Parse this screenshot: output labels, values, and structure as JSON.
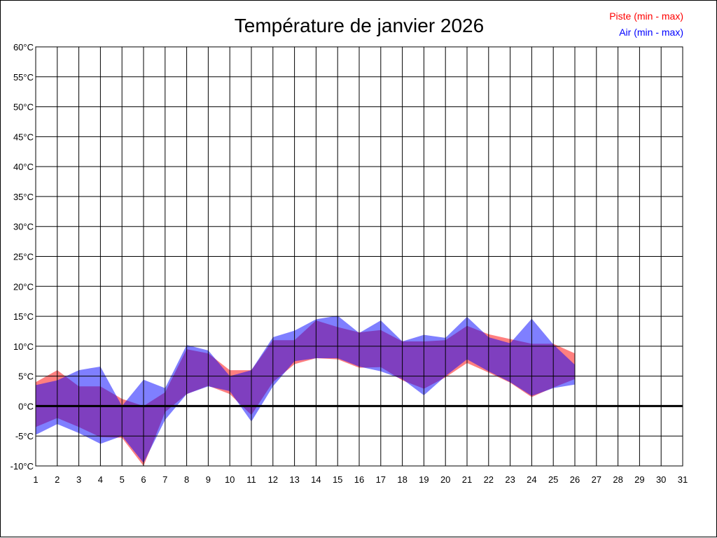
{
  "chart_data": {
    "type": "area",
    "title": "Température de janvier 2026",
    "xlabel": "",
    "ylabel": "",
    "x": [
      1,
      2,
      3,
      4,
      5,
      6,
      7,
      8,
      9,
      10,
      11,
      12,
      13,
      14,
      15,
      16,
      17,
      18,
      19,
      20,
      21,
      22,
      23,
      24,
      25,
      26,
      27,
      28,
      29,
      30,
      31
    ],
    "xlim": [
      1,
      31
    ],
    "ylim": [
      -10,
      60
    ],
    "y_ticks": [
      -10,
      -5,
      0,
      5,
      10,
      15,
      20,
      25,
      30,
      35,
      40,
      45,
      50,
      55,
      60
    ],
    "y_tick_labels": [
      "-10°C",
      "-5°C",
      "0°C",
      "5°C",
      "10°C",
      "15°C",
      "20°C",
      "25°C",
      "30°C",
      "35°C",
      "40°C",
      "45°C",
      "50°C",
      "55°C",
      "60°C"
    ],
    "x_tick_labels": [
      "1",
      "2",
      "3",
      "4",
      "5",
      "6",
      "7",
      "8",
      "9",
      "10",
      "11",
      "12",
      "13",
      "14",
      "15",
      "16",
      "17",
      "18",
      "19",
      "20",
      "21",
      "22",
      "23",
      "24",
      "25",
      "26",
      "27",
      "28",
      "29",
      "30",
      "31"
    ],
    "grid": true,
    "zero_line": true,
    "legend_position": "top-right",
    "series": [
      {
        "name": "Piste (min - max)",
        "color": "#ff0000",
        "x": [
          1,
          2,
          3,
          4,
          5,
          6,
          7,
          8,
          9,
          10,
          11,
          12,
          13,
          14,
          15,
          16,
          17,
          18,
          19,
          20,
          21,
          22,
          23,
          24,
          25,
          26
        ],
        "min": [
          -3.5,
          -2.0,
          -3.5,
          -5.2,
          -5.3,
          -10.0,
          -1.0,
          2.0,
          3.4,
          2.0,
          -1.5,
          4.0,
          7.0,
          8.0,
          7.8,
          6.4,
          6.5,
          4.3,
          2.9,
          4.8,
          7.2,
          5.6,
          3.9,
          1.5,
          3.1,
          4.5
        ],
        "max": [
          4.0,
          6.0,
          3.3,
          3.3,
          1.2,
          0.0,
          2.3,
          9.5,
          8.8,
          6.0,
          6.0,
          11.0,
          11.0,
          14.3,
          13.2,
          12.3,
          12.7,
          10.8,
          10.8,
          11.0,
          13.4,
          12.0,
          11.2,
          10.4,
          10.4,
          8.8
        ]
      },
      {
        "name": "Air (min - max)",
        "color": "#0000ff",
        "x": [
          1,
          2,
          3,
          4,
          5,
          6,
          7,
          8,
          9,
          10,
          11,
          12,
          13,
          14,
          15,
          16,
          17,
          18,
          19,
          20,
          21,
          22,
          23,
          24,
          25,
          26
        ],
        "min": [
          -4.8,
          -3.0,
          -4.5,
          -6.3,
          -5.0,
          -9.5,
          -2.3,
          2.0,
          3.3,
          2.5,
          -2.6,
          3.3,
          7.5,
          8.0,
          8.0,
          6.6,
          5.8,
          4.5,
          1.8,
          5.0,
          7.8,
          5.8,
          4.0,
          1.7,
          3.0,
          3.6
        ],
        "max": [
          3.5,
          4.3,
          6.0,
          6.6,
          0.0,
          4.4,
          3.0,
          10.2,
          9.3,
          5.0,
          6.0,
          11.5,
          12.6,
          14.5,
          15.1,
          12.2,
          14.3,
          10.8,
          11.9,
          11.4,
          14.9,
          11.5,
          10.5,
          14.6,
          10.3,
          6.9
        ]
      }
    ]
  }
}
